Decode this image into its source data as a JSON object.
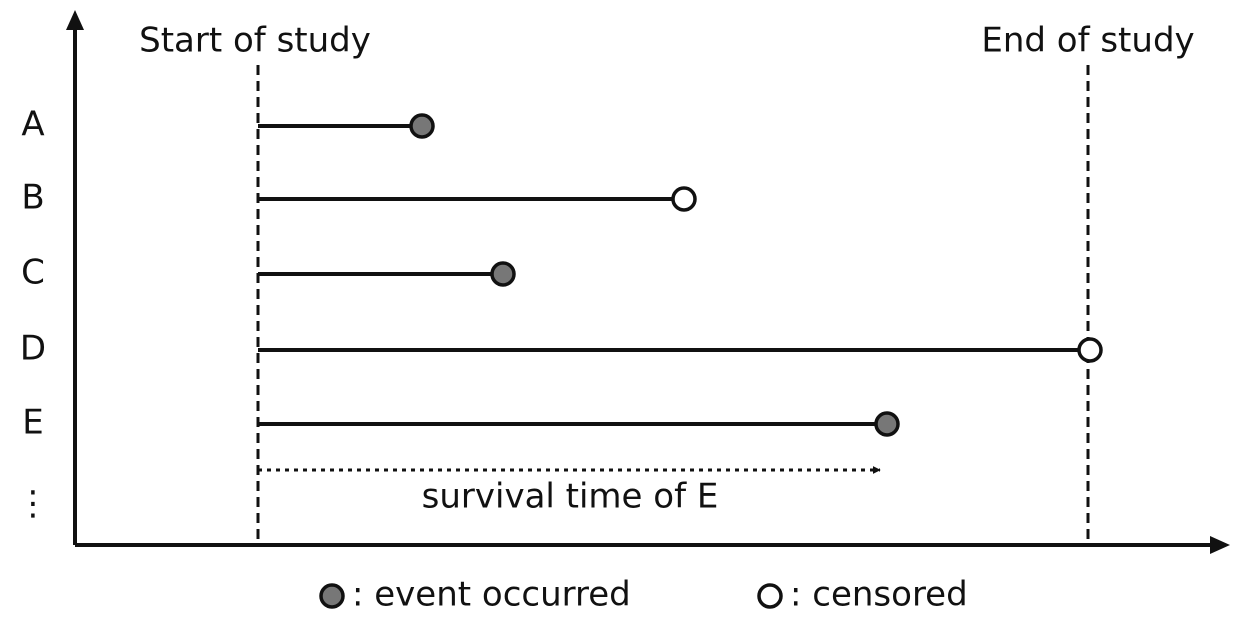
{
  "start_label": "Start of study",
  "end_label": "End of study",
  "subjects": [
    "A",
    "B",
    "C",
    "D",
    "E",
    "⋮"
  ],
  "annotation": "survival time of E",
  "legend": [
    ": event occurred",
    ": censored"
  ]
}
